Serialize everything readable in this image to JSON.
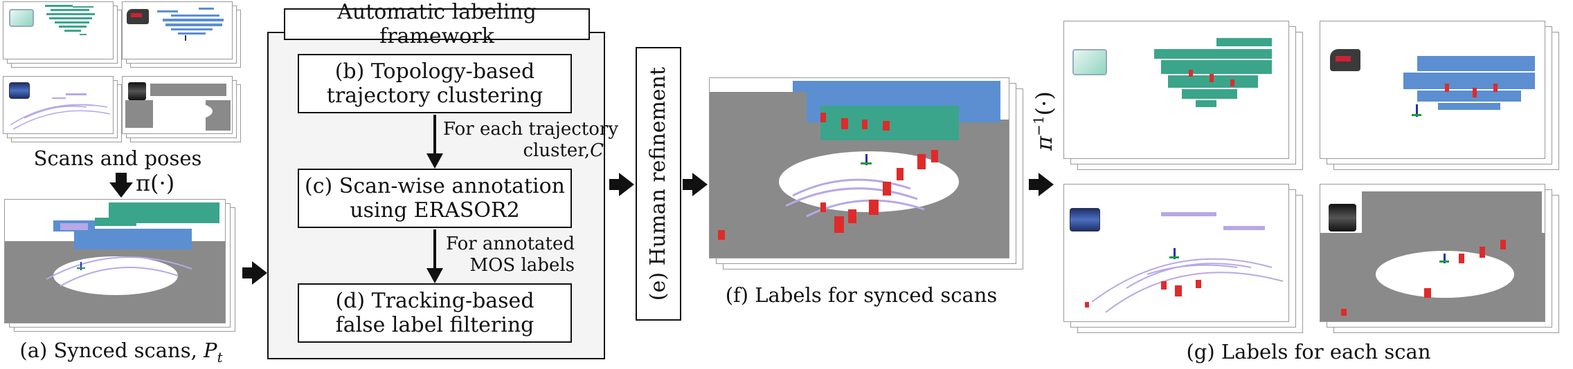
{
  "inputs": {
    "label": "Scans and poses",
    "transform": "π(·)"
  },
  "synced": {
    "caption_prefix": "(a) Synced scans,",
    "caption_symbol": "P",
    "caption_sub": "t"
  },
  "framework": {
    "title": "Automatic labeling framework",
    "step_b_line1": "(b) Topology-based",
    "step_b_line2": "trajectory clustering",
    "note_bc_line1": "For each trajectory",
    "note_bc_line2": "cluster,",
    "note_bc_symbol": "C",
    "step_c_line1": "(c) Scan-wise annotation",
    "step_c_line2": "using ERASOR2",
    "note_cd_line1": "For annotated",
    "note_cd_line2": "MOS labels",
    "step_d_line1": "(d) Tracking-based",
    "step_d_line2": "false label filtering"
  },
  "refinement": {
    "label": "(e) Human refinement"
  },
  "labels_synced": {
    "caption": "(f) Labels for synced scans"
  },
  "inverse": {
    "symbol": "π",
    "superscript": "−1",
    "arg": "(·)"
  },
  "labels_each": {
    "caption": "(g) Labels for each scan"
  },
  "colors": {
    "static_points": "#8a8a8a",
    "green_points": "#3aa58a",
    "blue_points": "#5b8fd1",
    "purple_points": "#b7a8e6",
    "dynamic_points": "#e02a2a",
    "arrow": "#111111"
  }
}
